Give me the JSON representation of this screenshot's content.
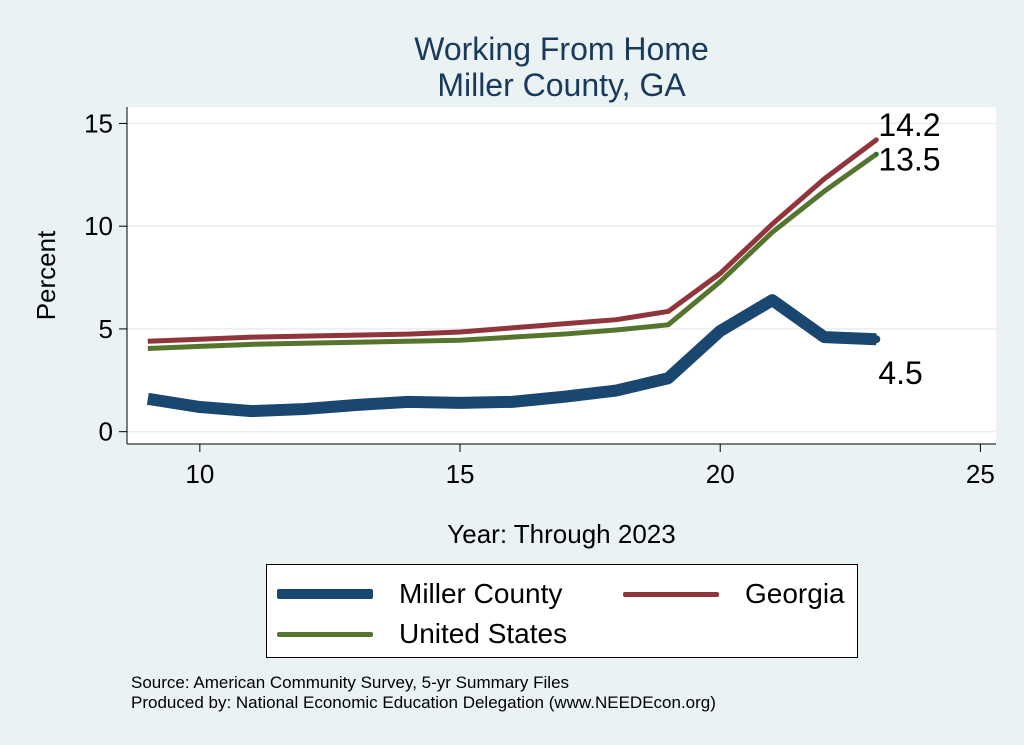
{
  "chart_data": {
    "type": "line",
    "title": "Working From Home",
    "subtitle": "Miller County, GA",
    "xlabel": "Year: Through 2023",
    "ylabel": "Percent",
    "xlim": [
      8.6,
      25.3
    ],
    "ylim": [
      -0.6,
      15.8
    ],
    "xticks": [
      10,
      15,
      20,
      25
    ],
    "yticks": [
      0,
      5,
      10,
      15
    ],
    "grid": true,
    "legend_position": "bottom",
    "series": [
      {
        "name": "Miller County",
        "color": "#1a476f",
        "x": [
          9,
          10,
          11,
          12,
          13,
          14,
          15,
          16,
          17,
          18,
          19,
          20,
          21,
          22,
          23
        ],
        "y": [
          1.6,
          1.2,
          1.0,
          1.1,
          1.3,
          1.45,
          1.4,
          1.45,
          1.7,
          2.0,
          2.6,
          4.9,
          6.4,
          4.6,
          4.5
        ],
        "end_label": "4.5"
      },
      {
        "name": "Georgia",
        "color": "#90353b",
        "x": [
          9,
          10,
          11,
          12,
          13,
          14,
          15,
          16,
          17,
          18,
          19,
          20,
          21,
          22,
          23
        ],
        "y": [
          4.4,
          4.5,
          4.6,
          4.65,
          4.7,
          4.75,
          4.85,
          5.05,
          5.25,
          5.45,
          5.85,
          7.7,
          10.1,
          12.3,
          14.2
        ],
        "end_label": "14.2"
      },
      {
        "name": "United States",
        "color": "#55752f",
        "x": [
          9,
          10,
          11,
          12,
          13,
          14,
          15,
          16,
          17,
          18,
          19,
          20,
          21,
          22,
          23
        ],
        "y": [
          4.05,
          4.15,
          4.25,
          4.3,
          4.35,
          4.4,
          4.45,
          4.6,
          4.75,
          4.95,
          5.2,
          7.3,
          9.7,
          11.7,
          13.5
        ],
        "end_label": "13.5"
      }
    ]
  },
  "source_line1": "Source: American Community Survey, 5-yr Summary Files",
  "source_line2": "Produced by: National Economic Education Delegation (www.NEEDEcon.org)"
}
